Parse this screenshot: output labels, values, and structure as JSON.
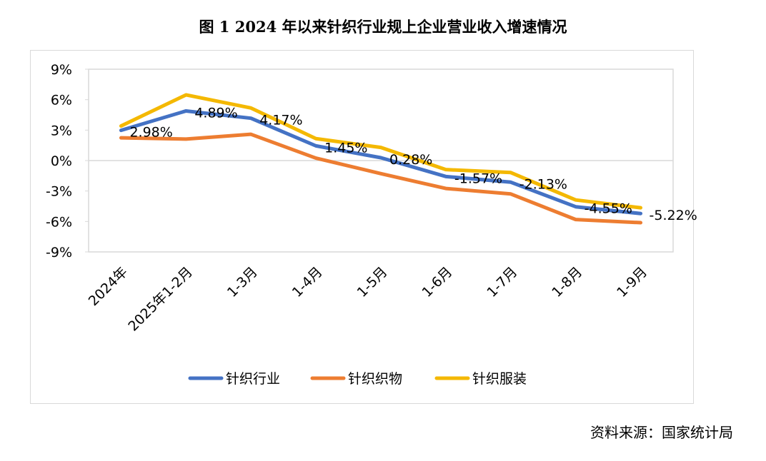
{
  "chart_data": {
    "type": "line",
    "title": "图 1   2024 年以来针织行业规上企业营业收入增速情况",
    "categories": [
      "2024年",
      "2025年1-2月",
      "1-3月",
      "1-4月",
      "1-5月",
      "1-6月",
      "1-7月",
      "1-8月",
      "1-9月"
    ],
    "ylim": [
      -9,
      9
    ],
    "yticks": [
      "9%",
      "6%",
      "3%",
      "0%",
      "-3%",
      "-6%",
      "-9%"
    ],
    "ytick_values": [
      9,
      6,
      3,
      0,
      -3,
      -6,
      -9
    ],
    "grid": "zero line only",
    "legend": "bottom",
    "series": [
      {
        "name": "针织行业",
        "color": "#4472c4",
        "values": [
          2.98,
          4.89,
          4.17,
          1.45,
          0.28,
          -1.57,
          -2.13,
          -4.55,
          -5.22
        ],
        "data_labels": [
          "2.98%",
          "4.89%",
          "4.17%",
          "1.45%",
          "0.28%",
          "-1.57%",
          "-2.13%",
          "-4.55%",
          "-5.22%"
        ]
      },
      {
        "name": "针织织物",
        "color": "#ed7d31",
        "values": [
          2.24,
          2.12,
          2.59,
          0.24,
          -1.29,
          -2.75,
          -3.29,
          -5.81,
          -6.12
        ]
      },
      {
        "name": "针织服装",
        "color": "#f4b800",
        "values": [
          3.41,
          6.47,
          5.18,
          2.16,
          1.29,
          -0.89,
          -1.18,
          -3.88,
          -4.65
        ]
      }
    ]
  },
  "source": "资料来源：国家统计局"
}
